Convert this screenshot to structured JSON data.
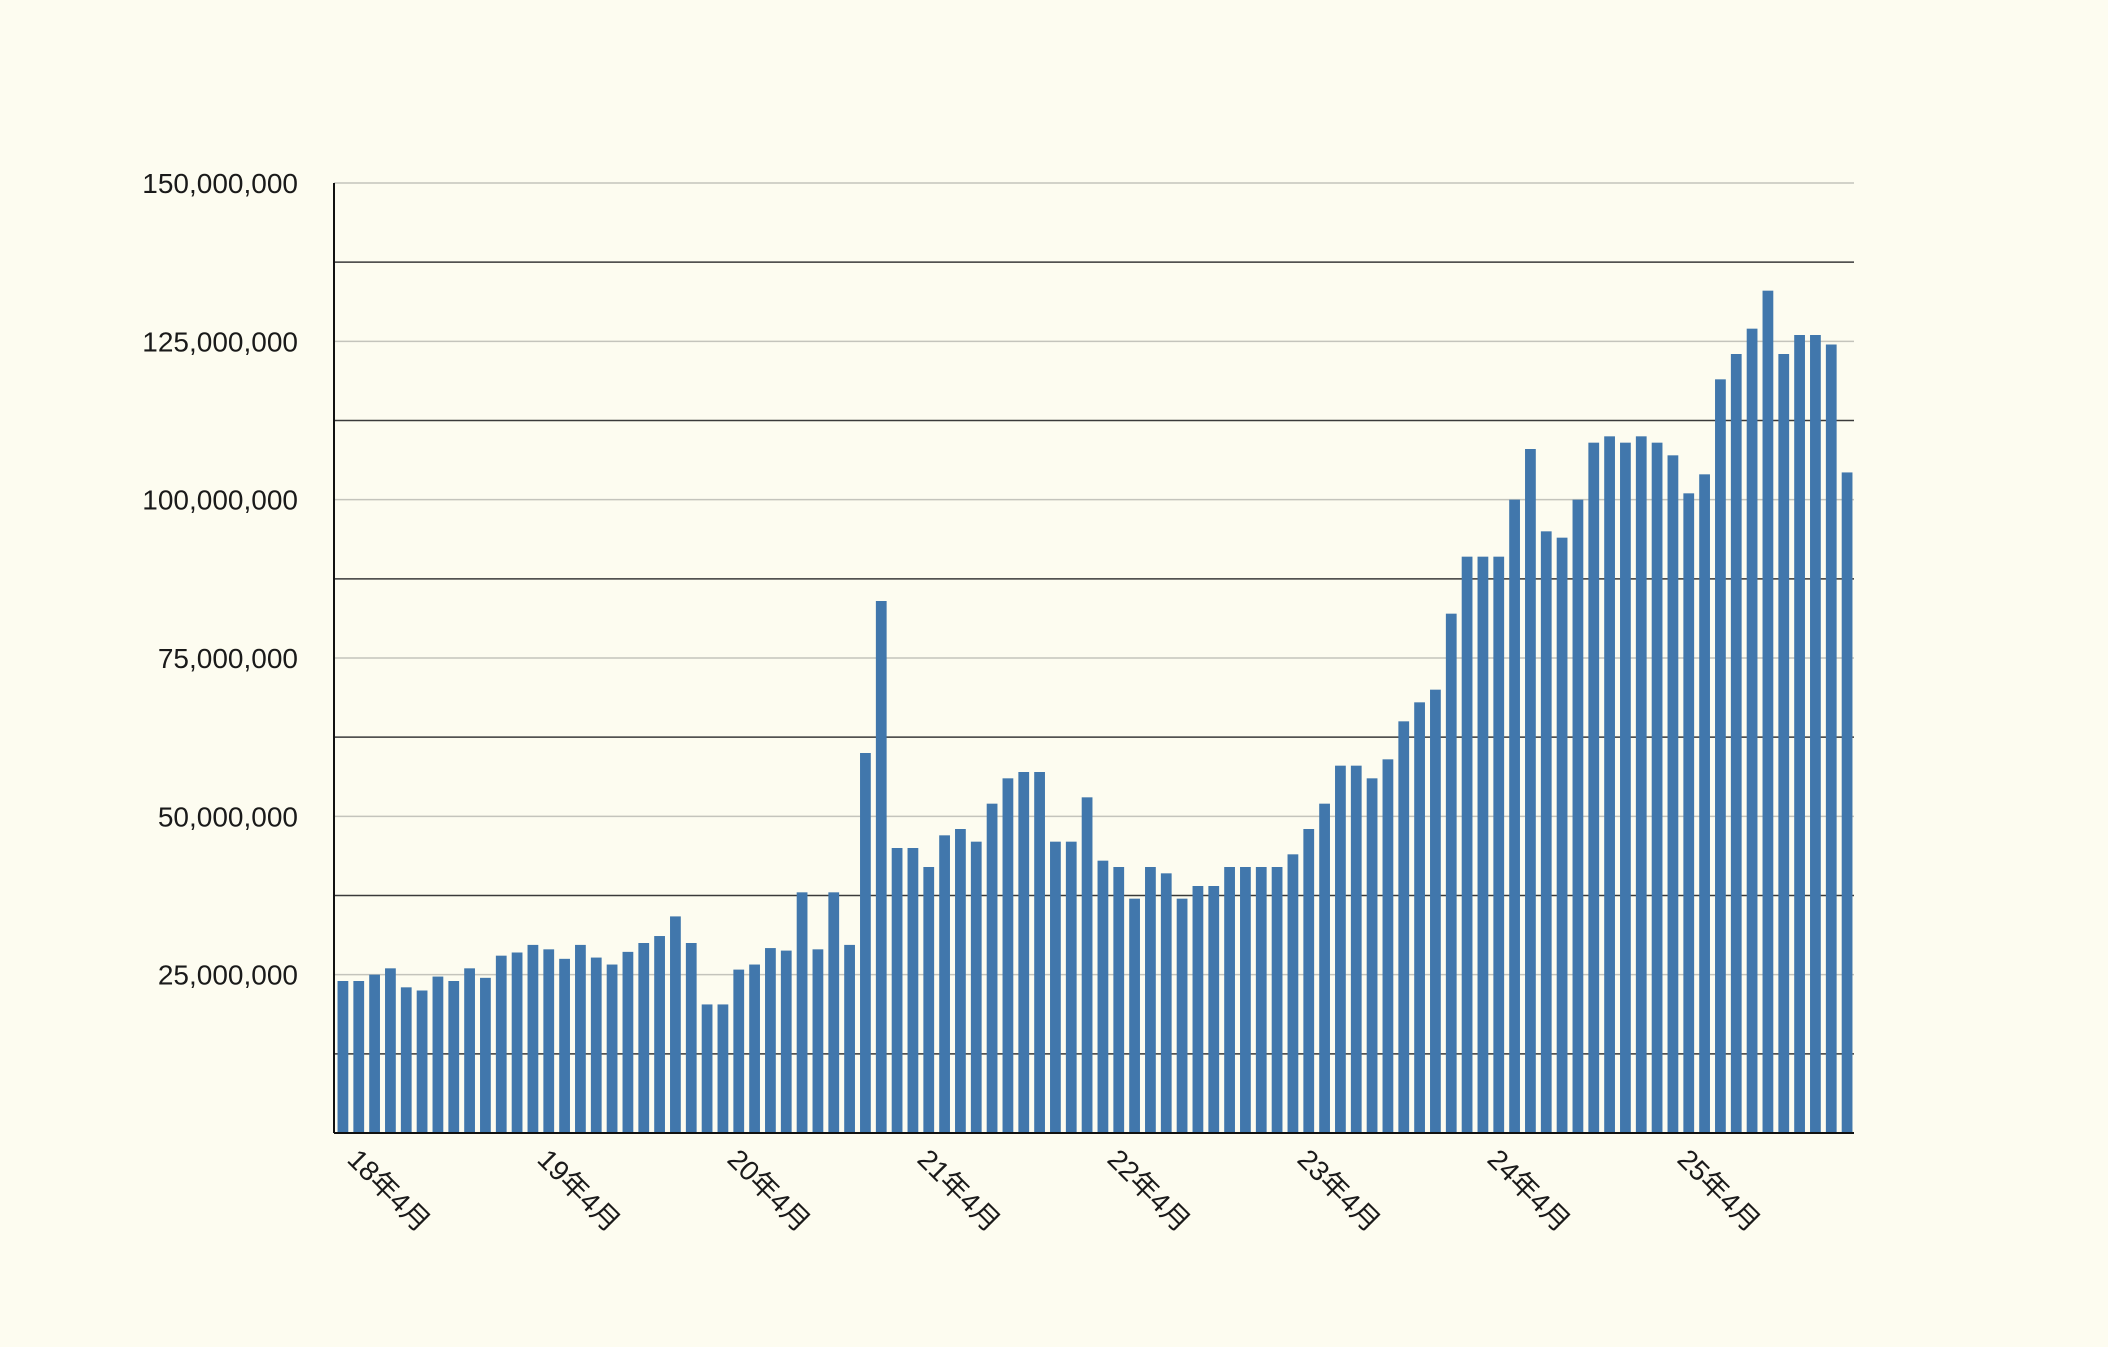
{
  "chart_data": {
    "type": "bar",
    "title": "",
    "xlabel": "",
    "ylabel": "",
    "ylim": [
      0,
      150000000
    ],
    "y_ticks": [
      25000000,
      50000000,
      75000000,
      100000000,
      125000000,
      150000000
    ],
    "y_tick_labels": [
      "25,000,000",
      "50,000,000",
      "75,000,000",
      "100,000,000",
      "125,000,000",
      "150,000,000"
    ],
    "grid": true,
    "legend": "none",
    "x_tick_labels": [
      "18年4月",
      "19年4月",
      "20年4月",
      "21年4月",
      "22年4月",
      "23年4月",
      "24年4月",
      "25年4月"
    ],
    "x_tick_index": [
      0,
      12,
      24,
      36,
      48,
      60,
      72,
      84
    ],
    "categories": [
      "18年4月",
      "18年5月",
      "18年6月",
      "18年7月",
      "18年8月",
      "18年9月",
      "18年10月",
      "18年11月",
      "18年12月",
      "19年1月",
      "19年2月",
      "19年3月",
      "19年4月",
      "19年5月",
      "19年6月",
      "19年7月",
      "19年8月",
      "19年9月",
      "19年10月",
      "19年11月",
      "19年12月",
      "20年1月",
      "20年2月",
      "20年3月",
      "20年4月",
      "20年5月",
      "20年6月",
      "20年7月",
      "20年8月",
      "20年9月",
      "20年10月",
      "20年11月",
      "20年12月",
      "21年1月",
      "21年2月",
      "21年3月",
      "21年4月",
      "21年5月",
      "21年6月",
      "21年7月",
      "21年8月",
      "21年9月",
      "21年10月",
      "21年11月",
      "21年12月",
      "22年1月",
      "22年2月",
      "22年3月",
      "22年4月",
      "22年5月",
      "22年6月",
      "22年7月",
      "22年8月",
      "22年9月",
      "22年10月",
      "22年11月",
      "22年12月",
      "23年1月",
      "23年2月",
      "23年3月",
      "23年4月",
      "23年5月",
      "23年6月",
      "23年7月",
      "23年8月",
      "23年9月",
      "23年10月",
      "23年11月",
      "23年12月",
      "24年1月",
      "24年2月",
      "24年3月",
      "24年4月",
      "24年5月",
      "24年6月",
      "24年7月",
      "24年8月",
      "24年9月",
      "24年10月",
      "24年11月",
      "24年12月",
      "25年1月",
      "25年2月",
      "25年3月",
      "25年4月",
      "25年5月",
      "25年6月",
      "25年7月",
      "25年8月",
      "25年9月",
      "25年10月",
      "25年11月",
      "25年12月",
      "26年1月",
      "26年2月",
      "26年3月"
    ],
    "series": [
      {
        "color": "#4177ac",
        "values": [
          24000000,
          24000000,
          25000000,
          26000000,
          23000000,
          22500000,
          24700000,
          24000000,
          26000000,
          24500000,
          28000000,
          28500000,
          29700000,
          29000000,
          27500000,
          29700000,
          27700000,
          26600000,
          28600000,
          30000000,
          31100000,
          34200000,
          30000000,
          20300000,
          20300000,
          25800000,
          26600000,
          29200000,
          28800000,
          38000000,
          29000000,
          38000000,
          29700000,
          60000000,
          84000000,
          45000000,
          45000000,
          42000000,
          47000000,
          48000000,
          46000000,
          52000000,
          56000000,
          57000000,
          57000000,
          46000000,
          46000000,
          53000000,
          43000000,
          42000000,
          37000000,
          42000000,
          41000000,
          37000000,
          39000000,
          39000000,
          42000000,
          42000000,
          42000000,
          42000000,
          44000000,
          48000000,
          52000000,
          58000000,
          58000000,
          56000000,
          59000000,
          65000000,
          68000000,
          70000000,
          82000000,
          91000000,
          91000000,
          91000000,
          100000000,
          108000000,
          95000000,
          94000000,
          100000000,
          109000000,
          110000000,
          109000000,
          110000000,
          109000000,
          107000000,
          101000000,
          104000000,
          119000000,
          123000000,
          127000000,
          133000000,
          123000000,
          126000000,
          126000000,
          124500000,
          104300000
        ]
      }
    ]
  }
}
